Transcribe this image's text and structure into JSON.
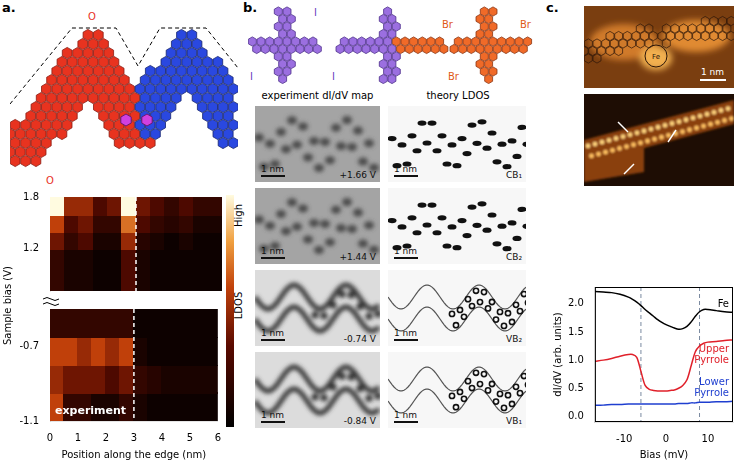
{
  "figure": {
    "panel_labels": [
      "a.",
      "b.",
      "c."
    ],
    "a": {
      "molecule_labels": [
        "O",
        "O"
      ]
    },
    "b": {
      "molecules": [
        {
          "labels": [
            "I",
            "I"
          ]
        },
        {
          "labels": [
            "I",
            "Br"
          ]
        },
        {
          "labels": [
            "Br",
            "Br"
          ]
        }
      ],
      "column_titles": [
        "experiment dI/dV map",
        "theory LDOS"
      ],
      "rows": [
        {
          "experiment": "+1.66 V",
          "theory": "CB₁"
        },
        {
          "experiment": "+1.44 V",
          "theory": "CB₂"
        },
        {
          "experiment": "-0.74 V",
          "theory": "VB₂"
        },
        {
          "experiment": "-0.84 V",
          "theory": "VB₁"
        }
      ],
      "scale_bar": "1 nm"
    },
    "c": {
      "scale_bar": "1 nm",
      "center_label": "Fe"
    }
  },
  "chart_data": [
    {
      "type": "heatmap",
      "xlabel": "Position along the edge (nm)",
      "ylabel": "Sample bias (V)",
      "annotation": "experiment",
      "colorbar": {
        "top_label": "High",
        "label": "LDOS",
        "range": [
          0,
          1
        ]
      },
      "xlim": [
        0,
        6
      ],
      "xticks": [
        0,
        1,
        2,
        3,
        4,
        5,
        6
      ],
      "x_edges": [
        0,
        0.5,
        1,
        1.5,
        2,
        2.5,
        3,
        3.5,
        4,
        4.5,
        5,
        5.5,
        6
      ],
      "guide_x": 3,
      "segments": [
        {
          "ylim": [
            0.7,
            1.8
          ],
          "yticks": [
            1.2,
            1.8
          ],
          "y_edges": [
            0.7,
            1.2,
            1.4,
            1.6,
            1.8
          ],
          "cells": [
            [
              0.2,
              0.1,
              0.1,
              0.05,
              0.05,
              0.3,
              0.1,
              0.05,
              0.05,
              0.05,
              0.05,
              0.05
            ],
            [
              0.4,
              0.2,
              0.3,
              0.1,
              0.1,
              0.5,
              0.15,
              0.1,
              0.05,
              0.1,
              0.05,
              0.05
            ],
            [
              0.6,
              0.3,
              0.4,
              0.2,
              0.2,
              0.7,
              0.3,
              0.2,
              0.15,
              0.2,
              0.1,
              0.1
            ],
            [
              1.0,
              0.5,
              0.5,
              0.3,
              0.4,
              1.0,
              0.4,
              0.3,
              0.2,
              0.3,
              0.2,
              0.2
            ]
          ]
        },
        {
          "ylim": [
            -1.1,
            -0.5
          ],
          "yticks": [
            -1.1,
            -0.7
          ],
          "y_edges": [
            -1.1,
            -0.95,
            -0.8,
            -0.65,
            -0.5
          ],
          "cells": [
            [
              0.6,
              0.2,
              0.2,
              0.1,
              0.1,
              0.2,
              0.1,
              0.05,
              0.05,
              0.05,
              0.05,
              0.05
            ],
            [
              0.5,
              0.4,
              0.4,
              0.4,
              0.3,
              0.4,
              0.2,
              0.15,
              0.1,
              0.1,
              0.1,
              0.1
            ],
            [
              0.6,
              0.6,
              0.5,
              0.6,
              0.5,
              0.6,
              0.1,
              0.05,
              0.05,
              0.05,
              0.05,
              0.05
            ],
            [
              0.2,
              0.2,
              0.2,
              0.2,
              0.2,
              0.2,
              0.05,
              0.05,
              0.05,
              0.05,
              0.05,
              0.05
            ]
          ]
        }
      ]
    },
    {
      "type": "line",
      "xlabel": "Bias (mV)",
      "ylabel": "dI/dV (arb. units)",
      "xlim": [
        -17,
        16
      ],
      "xticks": [
        -10,
        0,
        10
      ],
      "ylim": [
        -0.1,
        2.3
      ],
      "yticks": [
        {
          "value": 0,
          "label": "0.0"
        },
        0.5,
        {
          "value": 1,
          "label": "1.0"
        },
        1.5,
        {
          "value": 2,
          "label": "2.0"
        }
      ],
      "grid": false,
      "guide_x": [
        -6,
        8
      ],
      "x": [
        -17,
        -15,
        -13,
        -11,
        -9,
        -8,
        -7,
        -6,
        -5,
        -4,
        -3,
        -2,
        -1,
        0,
        1,
        2,
        3,
        4,
        5,
        6,
        7,
        8,
        9,
        10,
        12,
        14,
        16
      ],
      "series": [
        {
          "name": "Fe",
          "color": "#000000",
          "values": [
            2.22,
            2.21,
            2.2,
            2.17,
            2.12,
            2.08,
            2.03,
            1.97,
            1.9,
            1.84,
            1.78,
            1.72,
            1.67,
            1.63,
            1.6,
            1.57,
            1.55,
            1.56,
            1.6,
            1.68,
            1.78,
            1.86,
            1.9,
            1.9,
            1.88,
            1.86,
            1.85
          ]
        },
        {
          "name": "Upper Pyrrole",
          "color": "#e0202a",
          "values": [
            0.98,
            1.0,
            1.03,
            1.07,
            1.1,
            1.1,
            1.05,
            0.8,
            0.55,
            0.48,
            0.46,
            0.45,
            0.45,
            0.45,
            0.46,
            0.47,
            0.5,
            0.55,
            0.65,
            0.9,
            1.15,
            1.25,
            1.3,
            1.32,
            1.33,
            1.35,
            1.36
          ]
        },
        {
          "name": "Lower Pyrrole",
          "color": "#1f3fd0",
          "values": [
            0.2,
            0.2,
            0.21,
            0.21,
            0.22,
            0.22,
            0.22,
            0.22,
            0.22,
            0.22,
            0.22,
            0.22,
            0.22,
            0.22,
            0.22,
            0.22,
            0.23,
            0.23,
            0.23,
            0.24,
            0.24,
            0.25,
            0.25,
            0.25,
            0.26,
            0.26,
            0.27
          ]
        }
      ]
    }
  ]
}
